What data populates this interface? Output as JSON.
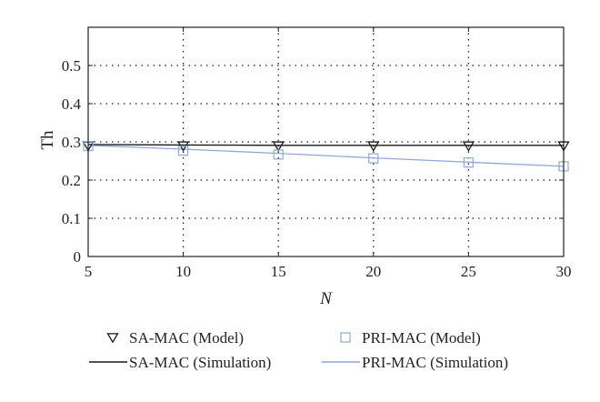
{
  "chart_data": {
    "type": "line",
    "title": "",
    "xlabel": "N",
    "ylabel": "Th",
    "xlim": [
      5,
      30
    ],
    "ylim": [
      0,
      0.6
    ],
    "x": [
      5,
      10,
      15,
      20,
      25,
      30
    ],
    "xticks": [
      "5",
      "10",
      "15",
      "20",
      "25",
      "30"
    ],
    "yticks": [
      "0",
      "0.1",
      "0.2",
      "0.3",
      "0.4",
      "0.5"
    ],
    "grid": true,
    "legend_position": "bottom",
    "series": [
      {
        "name": "SA-MAC (Model)",
        "kind": "marker",
        "marker": "triangle-down",
        "color": "#1a1a1a",
        "values": [
          0.29,
          0.29,
          0.29,
          0.29,
          0.29,
          0.29
        ]
      },
      {
        "name": "PRI-MAC (Model)",
        "kind": "marker",
        "marker": "square",
        "color": "#8fa8d8",
        "values": [
          0.289,
          0.277,
          0.267,
          0.257,
          0.246,
          0.236
        ]
      },
      {
        "name": "SA-MAC (Simulation)",
        "kind": "line",
        "color": "#1a1a1a",
        "values": [
          0.293,
          0.292,
          0.291,
          0.291,
          0.291,
          0.291
        ]
      },
      {
        "name": "PRI-MAC (Simulation)",
        "kind": "line",
        "color": "#8fa8d8",
        "values": [
          0.291,
          0.281,
          0.27,
          0.258,
          0.247,
          0.236
        ]
      }
    ]
  }
}
